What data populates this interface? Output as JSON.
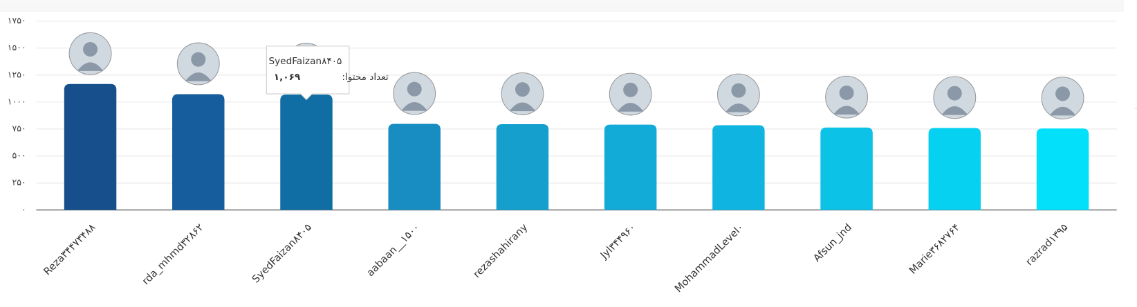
{
  "chart_data": {
    "type": "bar",
    "categories": [
      "Reza۳۴۴۷۳۴۸۸",
      "rda_mhmd۳۲۸۶۲",
      "SyedFaizan۸۴۰۵",
      "aabaan__۱۵۰۰",
      "rezashahirany",
      "Jyl۳۴۴۹۶۰",
      "MohammadLevel۰",
      "Afsun_jnd",
      "Marie۳۶۸۲۷۶۴",
      "razrad۱۳۹۵"
    ],
    "values": [
      1167,
      1073,
      1069,
      798,
      795,
      791,
      785,
      764,
      760,
      755
    ],
    "value_labels": [
      null,
      null,
      "۱,۰۶۹",
      null,
      null,
      null,
      null,
      null,
      null,
      null
    ],
    "colors": [
      "#164f8c",
      "#155d9c",
      "#106ea4",
      "#188dc2",
      "#149fcc",
      "#12abd8",
      "#0fb5e0",
      "#0cc2e6",
      "#07d1f0",
      "#02e0fa"
    ],
    "ylim": [
      0,
      1750
    ],
    "yticks": [
      {
        "value": 0,
        "label": "۰"
      },
      {
        "value": 250,
        "label": "۲۵۰"
      },
      {
        "value": 500,
        "label": "۵۰۰"
      },
      {
        "value": 750,
        "label": "۷۵۰"
      },
      {
        "value": 1000,
        "label": "۱۰۰۰"
      },
      {
        "value": 1250,
        "label": "۱۲۵۰"
      },
      {
        "value": 1500,
        "label": "۱۵۰۰"
      },
      {
        "value": 1750,
        "label": "۱۷۵۰"
      }
    ],
    "grid": true,
    "tooltip": {
      "label": "تعداد محتوا:"
    }
  }
}
